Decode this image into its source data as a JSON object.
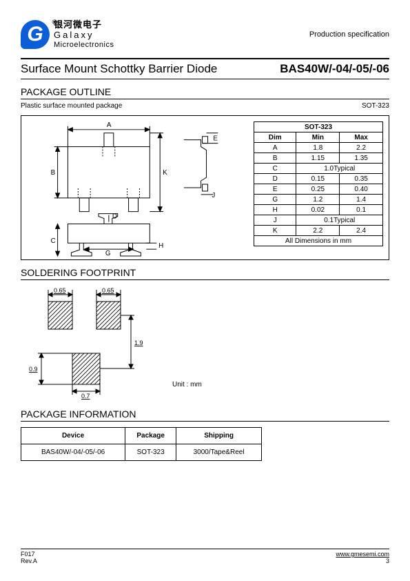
{
  "header": {
    "logo_letter": "G",
    "reg_mark": "®",
    "logo_cn": "银河微电子",
    "logo_en1": "Galaxy",
    "logo_en2": "Microelectronics",
    "prod_spec": "Production specification"
  },
  "title": {
    "left": "Surface Mount Schottky Barrier Diode",
    "right": "BAS40W/-04/-05/-06"
  },
  "section_outline": "PACKAGE OUTLINE",
  "outline_sub_left": "Plastic surface mounted package",
  "outline_sub_right": "SOT-323",
  "dim_table": {
    "title": "SOT-323",
    "headers": [
      "Dim",
      "Min",
      "Max"
    ],
    "rows": [
      {
        "dim": "A",
        "min": "1.8",
        "max": "2.2"
      },
      {
        "dim": "B",
        "min": "1.15",
        "max": "1.35"
      },
      {
        "dim": "C",
        "span": "1.0Typical"
      },
      {
        "dim": "D",
        "min": "0.15",
        "max": "0.35"
      },
      {
        "dim": "E",
        "min": "0.25",
        "max": "0.40"
      },
      {
        "dim": "G",
        "min": "1.2",
        "max": "1.4"
      },
      {
        "dim": "H",
        "min": "0.02",
        "max": "0.1"
      },
      {
        "dim": "J",
        "span": "0.1Typical"
      },
      {
        "dim": "K",
        "min": "2.2",
        "max": "2.4"
      }
    ],
    "footer": "All Dimensions in mm"
  },
  "pkg_labels": {
    "A": "A",
    "B": "B",
    "C": "C",
    "D": "D",
    "E": "E",
    "G": "G",
    "H": "H",
    "J": "J",
    "K": "K"
  },
  "section_footprint": "SOLDERING FOOTPRINT",
  "fp_dims": {
    "p065a": "0.65",
    "p065b": "0.65",
    "h19": "1.9",
    "h09": "0.9",
    "w07": "0.7"
  },
  "unit_label": "Unit : mm",
  "section_pkginfo": "PACKAGE INFORMATION",
  "pkg_info": {
    "headers": [
      "Device",
      "Package",
      "Shipping"
    ],
    "row": [
      "BAS40W/-04/-05/-06",
      "SOT-323",
      "3000/Tape&Reel"
    ]
  },
  "footer": {
    "code": "F017",
    "rev": "Rev.A",
    "url": "www.gmesemi.com",
    "page": "3"
  },
  "colors": {
    "brand": "#0b5ed7",
    "line": "#000000",
    "hatch": "#000000"
  }
}
